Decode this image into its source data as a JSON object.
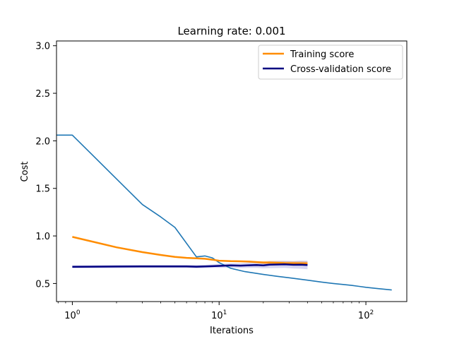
{
  "chart_data": {
    "type": "line",
    "title": "Learning rate: 0.001",
    "xlabel": "Iterations",
    "ylabel": "Cost",
    "xscale": "log",
    "xlim": [
      0.78,
      190
    ],
    "ylim": [
      0.31,
      3.05
    ],
    "grid": false,
    "legend_position": "top-right",
    "x_ticks": [
      {
        "value": 1,
        "mantissa": "10",
        "exp": "0"
      },
      {
        "value": 10,
        "mantissa": "10",
        "exp": "1"
      },
      {
        "value": 100,
        "mantissa": "10",
        "exp": "2"
      }
    ],
    "y_ticks": [
      0.5,
      1.0,
      1.5,
      2.0,
      2.5,
      3.0
    ],
    "y_tick_labels": [
      "0.5",
      "1.0",
      "1.5",
      "2.0",
      "2.5",
      "3.0"
    ],
    "series": [
      {
        "name": "Training score",
        "color": "#ff8c00",
        "x": [
          1,
          2,
          3,
          4,
          5,
          6,
          7,
          8,
          9,
          10,
          12,
          14,
          16,
          18,
          20,
          22,
          25,
          28,
          32,
          36,
          40
        ],
        "y": [
          0.99,
          0.88,
          0.83,
          0.8,
          0.78,
          0.77,
          0.765,
          0.76,
          0.75,
          0.74,
          0.735,
          0.733,
          0.73,
          0.725,
          0.72,
          0.72,
          0.718,
          0.715,
          0.714,
          0.713,
          0.712
        ],
        "band_lower": [
          0.985,
          0.875,
          0.825,
          0.795,
          0.775,
          0.765,
          0.76,
          0.755,
          0.745,
          0.735,
          0.728,
          0.725,
          0.72,
          0.715,
          0.705,
          0.703,
          0.7,
          0.697,
          0.695,
          0.693,
          0.692
        ],
        "band_upper": [
          0.995,
          0.885,
          0.835,
          0.805,
          0.785,
          0.775,
          0.77,
          0.765,
          0.755,
          0.745,
          0.742,
          0.741,
          0.74,
          0.735,
          0.735,
          0.737,
          0.736,
          0.733,
          0.733,
          0.733,
          0.732
        ]
      },
      {
        "name": "Cross-validation score",
        "color": "#000080",
        "band_color": "#8a84d6",
        "x": [
          1,
          2,
          3,
          4,
          5,
          6,
          7,
          8,
          9,
          10,
          12,
          14,
          16,
          18,
          20,
          22,
          25,
          28,
          32,
          36,
          40
        ],
        "y": [
          0.675,
          0.678,
          0.68,
          0.68,
          0.68,
          0.68,
          0.677,
          0.68,
          0.682,
          0.685,
          0.69,
          0.688,
          0.692,
          0.695,
          0.69,
          0.698,
          0.7,
          0.702,
          0.697,
          0.698,
          0.695
        ],
        "band_lower": [
          0.66,
          0.662,
          0.664,
          0.664,
          0.664,
          0.664,
          0.66,
          0.663,
          0.664,
          0.665,
          0.667,
          0.663,
          0.665,
          0.665,
          0.66,
          0.662,
          0.663,
          0.665,
          0.658,
          0.655,
          0.65
        ],
        "band_upper": [
          0.69,
          0.694,
          0.696,
          0.696,
          0.696,
          0.696,
          0.694,
          0.697,
          0.7,
          0.705,
          0.713,
          0.713,
          0.719,
          0.725,
          0.72,
          0.734,
          0.737,
          0.739,
          0.736,
          0.741,
          0.74
        ]
      },
      {
        "color": "#1f77b4",
        "x": [
          0.78,
          1,
          3,
          4,
          5,
          7,
          8,
          9,
          10,
          12,
          15,
          20,
          25,
          30,
          40,
          50,
          60,
          70,
          80,
          90,
          100,
          120,
          140,
          150
        ],
        "y": [
          2.06,
          2.06,
          1.33,
          1.2,
          1.09,
          0.78,
          0.79,
          0.77,
          0.72,
          0.66,
          0.625,
          0.595,
          0.575,
          0.56,
          0.535,
          0.515,
          0.5,
          0.49,
          0.48,
          0.47,
          0.46,
          0.447,
          0.437,
          0.432
        ]
      }
    ]
  }
}
